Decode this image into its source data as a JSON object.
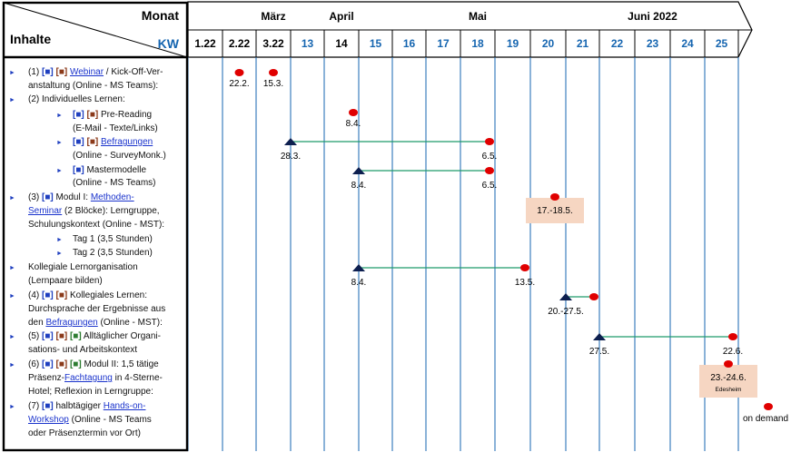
{
  "header": {
    "monat_label": "Monat",
    "inhalte_label": "Inhalte",
    "kw_label": "KW",
    "months": [
      {
        "label": "März",
        "col": 2
      },
      {
        "label": "April",
        "col": 4
      },
      {
        "label": "Mai",
        "col": 8
      },
      {
        "label": "Juni 2022",
        "col": 13
      }
    ],
    "weeks": [
      {
        "label": "1.22",
        "color": "#000000"
      },
      {
        "label": "2.22",
        "color": "#000000"
      },
      {
        "label": "3.22",
        "color": "#000000"
      },
      {
        "label": "13",
        "color": "#1565b0"
      },
      {
        "label": "14",
        "color": "#000000"
      },
      {
        "label": "15",
        "color": "#1565b0"
      },
      {
        "label": "16",
        "color": "#1565b0"
      },
      {
        "label": "17",
        "color": "#1565b0"
      },
      {
        "label": "18",
        "color": "#1565b0"
      },
      {
        "label": "19",
        "color": "#1565b0"
      },
      {
        "label": "20",
        "color": "#1565b0"
      },
      {
        "label": "21",
        "color": "#1565b0"
      },
      {
        "label": "22",
        "color": "#1565b0"
      },
      {
        "label": "23",
        "color": "#1565b0"
      },
      {
        "label": "24",
        "color": "#1565b0"
      },
      {
        "label": "25",
        "color": "#1565b0"
      }
    ]
  },
  "content_rows": [
    {
      "indent": 0,
      "bullet": true,
      "y": 78,
      "segments": [
        {
          "t": "(1) "
        },
        {
          "t": "[■]",
          "c": "#1f3fbf"
        },
        {
          "t": " "
        },
        {
          "t": "[■]",
          "c": "#8b3a1a"
        },
        {
          "t": " "
        },
        {
          "t": "Webinar",
          "link": true
        },
        {
          "t": " / Kick-Off-Ver-"
        }
      ]
    },
    {
      "indent": 0,
      "bullet": false,
      "y": 93,
      "segments": [
        {
          "t": "anstaltung (Online - MS Teams):"
        }
      ]
    },
    {
      "indent": 0,
      "bullet": true,
      "y": 108,
      "segments": [
        {
          "t": "(2) Individuelles Lernen:"
        }
      ]
    },
    {
      "indent": 1,
      "bullet": true,
      "y": 125,
      "segments": [
        {
          "t": "[■]",
          "c": "#1f3fbf"
        },
        {
          "t": " "
        },
        {
          "t": "[■]",
          "c": "#8b3a1a"
        },
        {
          "t": " Pre-Reading"
        }
      ]
    },
    {
      "indent": 1,
      "bullet": false,
      "y": 140,
      "segments": [
        {
          "t": "(E-Mail  - Texte/Links)"
        }
      ]
    },
    {
      "indent": 1,
      "bullet": true,
      "y": 155,
      "segments": [
        {
          "t": "[■]",
          "c": "#1f3fbf"
        },
        {
          "t": " "
        },
        {
          "t": "[■]",
          "c": "#8b3a1a"
        },
        {
          "t": " "
        },
        {
          "t": "Befragungen",
          "link": true
        }
      ]
    },
    {
      "indent": 1,
      "bullet": false,
      "y": 170,
      "segments": [
        {
          "t": "(Online - SurveyMonk.)"
        }
      ]
    },
    {
      "indent": 1,
      "bullet": true,
      "y": 186,
      "segments": [
        {
          "t": "[■]",
          "c": "#1f3fbf"
        },
        {
          "t": " Mastermodelle"
        }
      ]
    },
    {
      "indent": 1,
      "bullet": false,
      "y": 200,
      "segments": [
        {
          "t": "(Online - MS Teams)"
        }
      ]
    },
    {
      "indent": 0,
      "bullet": true,
      "y": 216,
      "segments": [
        {
          "t": "(3) "
        },
        {
          "t": "[■]",
          "c": "#1f3fbf"
        },
        {
          "t": " Modul I:  "
        },
        {
          "t": "Methoden-",
          "link": true
        }
      ]
    },
    {
      "indent": 0,
      "bullet": false,
      "y": 231,
      "segments": [
        {
          "t": "Seminar",
          "link": true
        },
        {
          "t": " (2 Blöcke): Lerngruppe,"
        }
      ]
    },
    {
      "indent": 0,
      "bullet": false,
      "y": 246,
      "segments": [
        {
          "t": "Schulungskontext (Online - MST):"
        }
      ]
    },
    {
      "indent": 2,
      "bullet": true,
      "y": 262,
      "segments": [
        {
          "t": "Tag 1 (3,5 Stunden)"
        }
      ]
    },
    {
      "indent": 2,
      "bullet": true,
      "y": 277,
      "segments": [
        {
          "t": "Tag 2 (3,5 Stunden)"
        }
      ]
    },
    {
      "indent": 0,
      "bullet": true,
      "y": 293,
      "segments": [
        {
          "t": "Kollegiale Lernorganisation"
        }
      ]
    },
    {
      "indent": 0,
      "bullet": false,
      "y": 308,
      "segments": [
        {
          "t": "(Lernpaare bilden)"
        }
      ]
    },
    {
      "indent": 0,
      "bullet": true,
      "y": 324,
      "segments": [
        {
          "t": "(4) "
        },
        {
          "t": "[■]",
          "c": "#1f3fbf"
        },
        {
          "t": " "
        },
        {
          "t": "[■]",
          "c": "#8b3a1a"
        },
        {
          "t": " Kollegiales Lernen:"
        }
      ]
    },
    {
      "indent": 0,
      "bullet": false,
      "y": 339,
      "segments": [
        {
          "t": "Durchsprache der Ergebnisse aus"
        }
      ]
    },
    {
      "indent": 0,
      "bullet": false,
      "y": 354,
      "segments": [
        {
          "t": "den "
        },
        {
          "t": "Befragungen",
          "link": true
        },
        {
          "t": " (Online - MST):"
        }
      ]
    },
    {
      "indent": 0,
      "bullet": true,
      "y": 369,
      "segments": [
        {
          "t": "(5) "
        },
        {
          "t": "[■]",
          "c": "#1f3fbf"
        },
        {
          "t": " "
        },
        {
          "t": "[■]",
          "c": "#8b3a1a"
        },
        {
          "t": " "
        },
        {
          "t": "[■]",
          "c": "#2e7d32"
        },
        {
          "t": " Alltäglicher Organi-"
        }
      ]
    },
    {
      "indent": 0,
      "bullet": false,
      "y": 384,
      "segments": [
        {
          "t": "sations- und Arbeitskontext"
        }
      ]
    },
    {
      "indent": 0,
      "bullet": true,
      "y": 400,
      "segments": [
        {
          "t": "(6) "
        },
        {
          "t": "[■]",
          "c": "#1f3fbf"
        },
        {
          "t": " "
        },
        {
          "t": "[■]",
          "c": "#8b3a1a"
        },
        {
          "t": " "
        },
        {
          "t": "[■]",
          "c": "#2e7d32"
        },
        {
          "t": " Modul II:  1,5 tätige"
        }
      ]
    },
    {
      "indent": 0,
      "bullet": false,
      "y": 415,
      "segments": [
        {
          "t": "Präsenz-"
        },
        {
          "t": "Fachtagung",
          "link": true
        },
        {
          "t": " in 4-Sterne-"
        }
      ]
    },
    {
      "indent": 0,
      "bullet": false,
      "y": 430,
      "segments": [
        {
          "t": "Hotel; Reflexion in Lerngruppe:"
        }
      ]
    },
    {
      "indent": 0,
      "bullet": true,
      "y": 446,
      "segments": [
        {
          "t": "(7) "
        },
        {
          "t": "[■]",
          "c": "#1f3fbf"
        },
        {
          "t": " halbtägiger "
        },
        {
          "t": "Hands-on-",
          "link": true
        }
      ]
    },
    {
      "indent": 0,
      "bullet": false,
      "y": 461,
      "segments": [
        {
          "t": "Workshop",
          "link": true
        },
        {
          "t": " (Online - MS Teams"
        }
      ]
    },
    {
      "indent": 0,
      "bullet": false,
      "y": 476,
      "segments": [
        {
          "t": "oder Präsenztermin vor Ort)"
        }
      ]
    }
  ],
  "chart_data": {
    "type": "gantt",
    "x_axis": "Kalenderwoche (KW)",
    "milestones": [
      {
        "id": "webinar-a",
        "week": "2.22",
        "label": "22.2.",
        "shape": "dot",
        "y": 82
      },
      {
        "id": "webinar-b",
        "week": "3.22",
        "label": "15.3.",
        "shape": "dot",
        "y": 82
      },
      {
        "id": "pre-reading",
        "week": "14",
        "label": "8.4.",
        "shape": "dot",
        "y": 126
      },
      {
        "id": "workshop",
        "week": "after 25",
        "label": "on demand",
        "shape": "dot",
        "y": 450
      }
    ],
    "spans": [
      {
        "id": "befragungen",
        "start_week": "3.22",
        "end_week": "18",
        "start_label": "28.3.",
        "end_label": "6.5.",
        "y": 156
      },
      {
        "id": "mastermodelle",
        "start_week": "14",
        "end_week": "18",
        "start_label": "8.4.",
        "end_label": "6.5.",
        "y": 188
      },
      {
        "id": "lernpaare",
        "start_week": "14",
        "end_week": "19",
        "start_label": "8.4.",
        "end_label": "13.5.",
        "y": 295
      },
      {
        "id": "kollegiales-lernen",
        "start_week": "20",
        "end_week": "21",
        "start_label": "20.-27.5.",
        "end_label": "",
        "y": 327
      },
      {
        "id": "alltag",
        "start_week": "21",
        "end_week": "25",
        "start_label": "27.5.",
        "end_label": "22.6.",
        "y": 371
      }
    ],
    "blocks": [
      {
        "id": "modul-1",
        "week": "20",
        "label": "17.-18.5.",
        "sublabel": "",
        "y": 217
      },
      {
        "id": "modul-2",
        "week": "25",
        "label": "23.-24.6.",
        "sublabel": "Edesheim",
        "y": 403
      }
    ]
  },
  "colors": {
    "milestone": "#e00000",
    "span_line": "#1f9a6a",
    "start_triangle": "#0d1f4f",
    "block_fill": "#f6d6c2",
    "grid": "#1565b0",
    "frame": "#000000",
    "kw_blue": "#1565b0"
  }
}
